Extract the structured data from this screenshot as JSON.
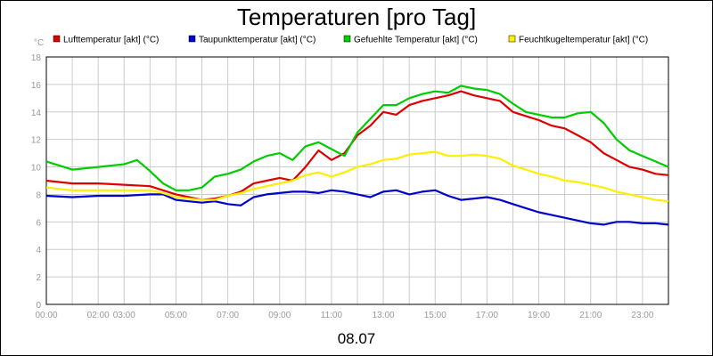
{
  "chart_data": {
    "type": "line",
    "title": "Temperaturen [pro Tag]",
    "unit_label": "°C",
    "date_label": "08.07",
    "ylim": [
      0,
      18
    ],
    "yticks": [
      0,
      2,
      4,
      6,
      8,
      10,
      12,
      14,
      16,
      18
    ],
    "xlim": [
      0,
      24
    ],
    "xticks": [
      {
        "v": 0,
        "label": "00:00"
      },
      {
        "v": 2,
        "label": "02:00"
      },
      {
        "v": 3,
        "label": "03:00"
      },
      {
        "v": 5,
        "label": "05:00"
      },
      {
        "v": 7,
        "label": "07:00"
      },
      {
        "v": 9,
        "label": "09:00"
      },
      {
        "v": 11,
        "label": "11:00"
      },
      {
        "v": 13,
        "label": "13:00"
      },
      {
        "v": 15,
        "label": "15:00"
      },
      {
        "v": 17,
        "label": "17:00"
      },
      {
        "v": 19,
        "label": "19:00"
      },
      {
        "v": 21,
        "label": "21:00"
      },
      {
        "v": 23,
        "label": "23:00"
      }
    ],
    "grid": true,
    "legend_position": "top",
    "series": [
      {
        "name": "Lufttemperatur [akt] (°C)",
        "color": "#dd0000",
        "points": [
          [
            0,
            9.0
          ],
          [
            1,
            8.8
          ],
          [
            2,
            8.8
          ],
          [
            3,
            8.7
          ],
          [
            4,
            8.6
          ],
          [
            4.5,
            8.3
          ],
          [
            5,
            8.0
          ],
          [
            5.5,
            7.8
          ],
          [
            6,
            7.6
          ],
          [
            6.5,
            7.7
          ],
          [
            7,
            7.9
          ],
          [
            7.5,
            8.2
          ],
          [
            8,
            8.8
          ],
          [
            8.5,
            9.0
          ],
          [
            9,
            9.2
          ],
          [
            9.5,
            9.0
          ],
          [
            10,
            10.0
          ],
          [
            10.5,
            11.2
          ],
          [
            11,
            10.5
          ],
          [
            11.5,
            11.0
          ],
          [
            12,
            12.3
          ],
          [
            12.5,
            13.0
          ],
          [
            13,
            14.0
          ],
          [
            13.5,
            13.8
          ],
          [
            14,
            14.5
          ],
          [
            14.5,
            14.8
          ],
          [
            15,
            15.0
          ],
          [
            15.5,
            15.2
          ],
          [
            16,
            15.5
          ],
          [
            16.5,
            15.2
          ],
          [
            17,
            15.0
          ],
          [
            17.5,
            14.8
          ],
          [
            18,
            14.0
          ],
          [
            18.5,
            13.7
          ],
          [
            19,
            13.4
          ],
          [
            19.5,
            13.0
          ],
          [
            20,
            12.8
          ],
          [
            20.5,
            12.3
          ],
          [
            21,
            11.8
          ],
          [
            21.5,
            11.0
          ],
          [
            22,
            10.5
          ],
          [
            22.5,
            10.0
          ],
          [
            23,
            9.8
          ],
          [
            23.5,
            9.5
          ],
          [
            24,
            9.4
          ]
        ]
      },
      {
        "name": "Taupunkttemperatur [akt] (°C)",
        "color": "#0000cc",
        "points": [
          [
            0,
            7.9
          ],
          [
            1,
            7.8
          ],
          [
            2,
            7.9
          ],
          [
            3,
            7.9
          ],
          [
            4,
            8.0
          ],
          [
            4.5,
            8.0
          ],
          [
            5,
            7.6
          ],
          [
            5.5,
            7.5
          ],
          [
            6,
            7.4
          ],
          [
            6.5,
            7.5
          ],
          [
            7,
            7.3
          ],
          [
            7.5,
            7.2
          ],
          [
            8,
            7.8
          ],
          [
            8.5,
            8.0
          ],
          [
            9,
            8.1
          ],
          [
            9.5,
            8.2
          ],
          [
            10,
            8.2
          ],
          [
            10.5,
            8.1
          ],
          [
            11,
            8.3
          ],
          [
            11.5,
            8.2
          ],
          [
            12,
            8.0
          ],
          [
            12.5,
            7.8
          ],
          [
            13,
            8.2
          ],
          [
            13.5,
            8.3
          ],
          [
            14,
            8.0
          ],
          [
            14.5,
            8.2
          ],
          [
            15,
            8.3
          ],
          [
            15.5,
            7.9
          ],
          [
            16,
            7.6
          ],
          [
            16.5,
            7.7
          ],
          [
            17,
            7.8
          ],
          [
            17.5,
            7.6
          ],
          [
            18,
            7.3
          ],
          [
            18.5,
            7.0
          ],
          [
            19,
            6.7
          ],
          [
            19.5,
            6.5
          ],
          [
            20,
            6.3
          ],
          [
            20.5,
            6.1
          ],
          [
            21,
            5.9
          ],
          [
            21.5,
            5.8
          ],
          [
            22,
            6.0
          ],
          [
            22.5,
            6.0
          ],
          [
            23,
            5.9
          ],
          [
            23.5,
            5.9
          ],
          [
            24,
            5.8
          ]
        ]
      },
      {
        "name": "Gefuehlte Temperatur [akt] (°C)",
        "color": "#00cc00",
        "points": [
          [
            0,
            10.4
          ],
          [
            1,
            9.8
          ],
          [
            2,
            10.0
          ],
          [
            3,
            10.2
          ],
          [
            3.5,
            10.5
          ],
          [
            4,
            9.7
          ],
          [
            4.5,
            8.8
          ],
          [
            5,
            8.3
          ],
          [
            5.5,
            8.3
          ],
          [
            6,
            8.5
          ],
          [
            6.5,
            9.3
          ],
          [
            7,
            9.5
          ],
          [
            7.5,
            9.8
          ],
          [
            8,
            10.4
          ],
          [
            8.5,
            10.8
          ],
          [
            9,
            11.0
          ],
          [
            9.5,
            10.5
          ],
          [
            10,
            11.5
          ],
          [
            10.5,
            11.8
          ],
          [
            11,
            11.3
          ],
          [
            11.5,
            10.8
          ],
          [
            12,
            12.5
          ],
          [
            12.5,
            13.5
          ],
          [
            13,
            14.5
          ],
          [
            13.5,
            14.5
          ],
          [
            14,
            15.0
          ],
          [
            14.5,
            15.3
          ],
          [
            15,
            15.5
          ],
          [
            15.5,
            15.4
          ],
          [
            16,
            15.9
          ],
          [
            16.5,
            15.7
          ],
          [
            17,
            15.6
          ],
          [
            17.5,
            15.3
          ],
          [
            18,
            14.6
          ],
          [
            18.5,
            14.0
          ],
          [
            19,
            13.8
          ],
          [
            19.5,
            13.6
          ],
          [
            20,
            13.6
          ],
          [
            20.5,
            13.9
          ],
          [
            21,
            14.0
          ],
          [
            21.5,
            13.2
          ],
          [
            22,
            12.0
          ],
          [
            22.5,
            11.2
          ],
          [
            23,
            10.8
          ],
          [
            23.5,
            10.4
          ],
          [
            24,
            10.0
          ]
        ]
      },
      {
        "name": "Feuchtkugeltemperatur [akt] (°C)",
        "color": "#ffee00",
        "points": [
          [
            0,
            8.5
          ],
          [
            1,
            8.3
          ],
          [
            2,
            8.3
          ],
          [
            3,
            8.3
          ],
          [
            4,
            8.3
          ],
          [
            4.5,
            8.1
          ],
          [
            5,
            7.8
          ],
          [
            5.5,
            7.7
          ],
          [
            6,
            7.6
          ],
          [
            6.5,
            7.6
          ],
          [
            7,
            7.9
          ],
          [
            7.5,
            8.1
          ],
          [
            8,
            8.4
          ],
          [
            8.5,
            8.6
          ],
          [
            9,
            8.8
          ],
          [
            9.5,
            9.0
          ],
          [
            10,
            9.4
          ],
          [
            10.5,
            9.6
          ],
          [
            11,
            9.3
          ],
          [
            11.5,
            9.6
          ],
          [
            12,
            10.0
          ],
          [
            12.5,
            10.2
          ],
          [
            13,
            10.5
          ],
          [
            13.5,
            10.6
          ],
          [
            14,
            10.9
          ],
          [
            14.5,
            11.0
          ],
          [
            15,
            11.1
          ],
          [
            15.5,
            10.8
          ],
          [
            16,
            10.8
          ],
          [
            16.5,
            10.9
          ],
          [
            17,
            10.8
          ],
          [
            17.5,
            10.6
          ],
          [
            18,
            10.1
          ],
          [
            18.5,
            9.8
          ],
          [
            19,
            9.5
          ],
          [
            19.5,
            9.3
          ],
          [
            20,
            9.0
          ],
          [
            20.5,
            8.9
          ],
          [
            21,
            8.7
          ],
          [
            21.5,
            8.5
          ],
          [
            22,
            8.2
          ],
          [
            22.5,
            8.0
          ],
          [
            23,
            7.8
          ],
          [
            23.5,
            7.6
          ],
          [
            24,
            7.5
          ]
        ]
      }
    ]
  }
}
